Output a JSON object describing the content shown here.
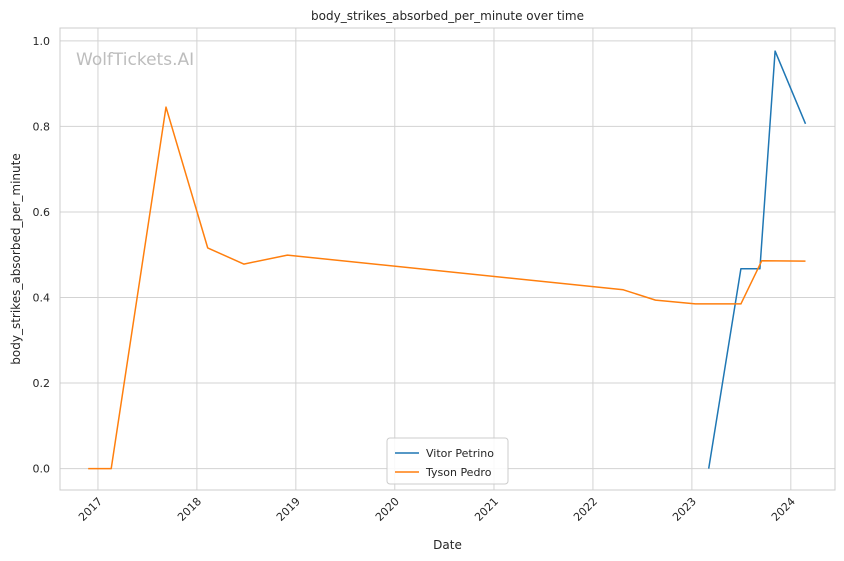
{
  "chart_data": {
    "type": "line",
    "title": "body_strikes_absorbed_per_minute over time",
    "xlabel": "Date",
    "ylabel": "body_strikes_absorbed_per_minute",
    "watermark": "WolfTickets.AI",
    "x_tick_labels": [
      "2017",
      "2018",
      "2019",
      "2020",
      "2021",
      "2022",
      "2023",
      "2024"
    ],
    "y_tick_labels": [
      "0.0",
      "0.2",
      "0.4",
      "0.6",
      "0.8",
      "1.0"
    ],
    "y_ticks": [
      0.0,
      0.2,
      0.4,
      0.6,
      0.8,
      1.0
    ],
    "ylim": [
      -0.05,
      1.03
    ],
    "xlim": [
      "2016-08-14",
      "2024-06-12"
    ],
    "grid": true,
    "legend_position": "lower-center",
    "series": [
      {
        "name": "Vitor Petrino",
        "color": "#1f77b4",
        "points": [
          {
            "x": "2023-03-04",
            "y": 0.0
          },
          {
            "x": "2023-07-01",
            "y": 0.467
          },
          {
            "x": "2023-09-09",
            "y": 0.467
          },
          {
            "x": "2023-11-04",
            "y": 0.976
          },
          {
            "x": "2024-02-24",
            "y": 0.806
          }
        ]
      },
      {
        "name": "Tyson Pedro",
        "color": "#ff7f0e",
        "points": [
          {
            "x": "2016-11-26",
            "y": 0.0
          },
          {
            "x": "2017-02-19",
            "y": 0.0
          },
          {
            "x": "2017-09-09",
            "y": 0.845
          },
          {
            "x": "2018-02-10",
            "y": 0.516
          },
          {
            "x": "2018-06-23",
            "y": 0.478
          },
          {
            "x": "2018-12-01",
            "y": 0.499
          },
          {
            "x": "2022-04-23",
            "y": 0.418
          },
          {
            "x": "2022-08-20",
            "y": 0.394
          },
          {
            "x": "2023-01-14",
            "y": 0.385
          },
          {
            "x": "2023-07-01",
            "y": 0.385
          },
          {
            "x": "2023-09-16",
            "y": 0.486
          },
          {
            "x": "2024-02-24",
            "y": 0.485
          }
        ]
      }
    ]
  }
}
